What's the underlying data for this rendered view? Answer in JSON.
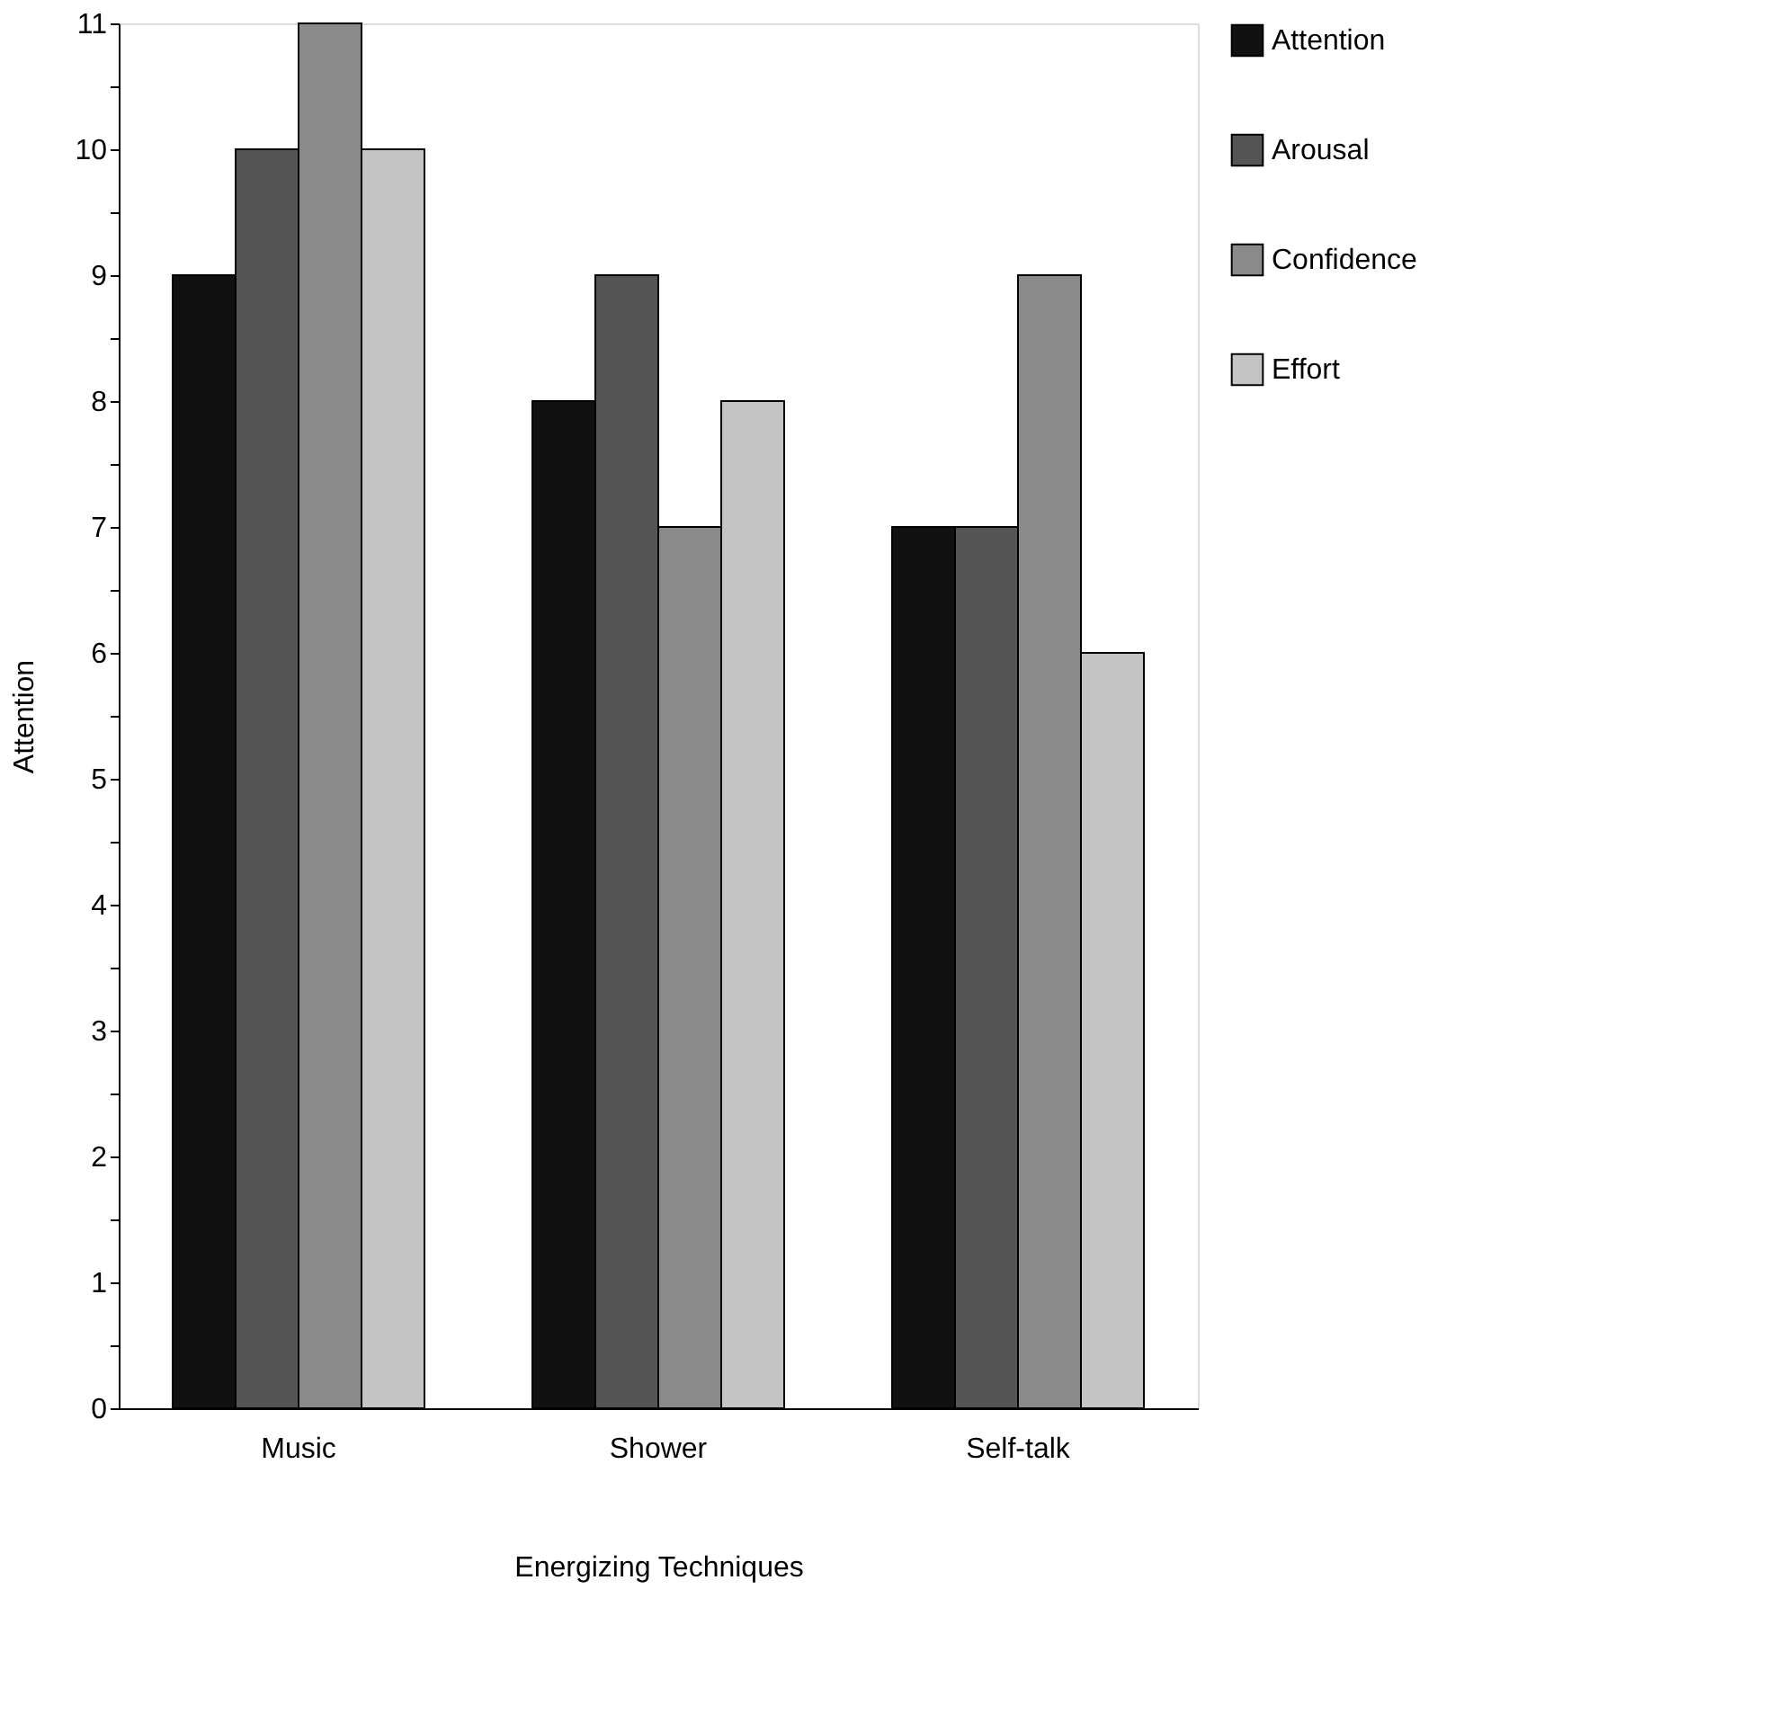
{
  "chart_data": {
    "type": "bar",
    "xlabel": "Energizing Techniques",
    "ylabel": "Attention",
    "categories": [
      "Music",
      "Shower",
      "Self-talk"
    ],
    "series": [
      {
        "name": "Attention",
        "color": "#111111",
        "values": [
          9,
          8,
          7
        ]
      },
      {
        "name": "Arousal",
        "color": "#555555",
        "values": [
          10,
          9,
          7
        ]
      },
      {
        "name": "Confidence",
        "color": "#8a8a8a",
        "values": [
          11,
          7,
          9
        ]
      },
      {
        "name": "Effort",
        "color": "#c4c4c4",
        "values": [
          10,
          8,
          6
        ]
      }
    ],
    "ylim": [
      0,
      11
    ],
    "yticks": [
      0,
      {
        "value": 0.5,
        "label": null
      },
      1,
      {
        "value": 1.5,
        "label": null
      },
      2,
      {
        "value": 2.5,
        "label": null
      },
      3,
      {
        "value": 3.5,
        "label": null
      },
      4,
      {
        "value": 4.5,
        "label": null
      },
      5,
      {
        "value": 5.5,
        "label": null
      },
      6,
      {
        "value": 6.5,
        "label": null
      },
      7,
      {
        "value": 7.5,
        "label": null
      },
      8,
      {
        "value": 8.5,
        "label": null
      },
      9,
      {
        "value": 9.5,
        "label": null
      },
      10,
      {
        "value": 10.5,
        "label": null
      },
      11
    ],
    "grid": false,
    "legend": "right"
  }
}
